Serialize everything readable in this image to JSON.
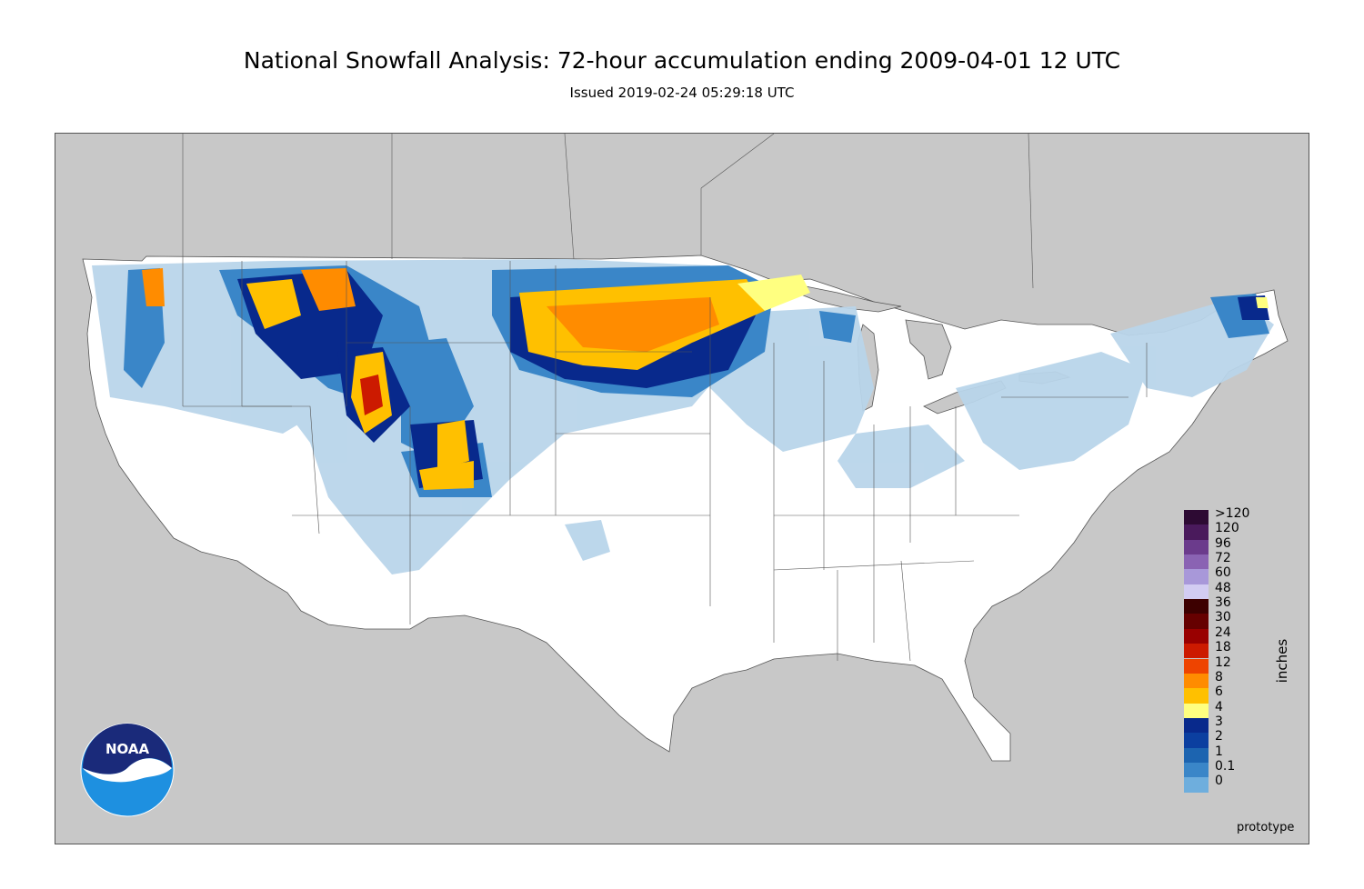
{
  "header": {
    "title": "National Snowfall Analysis: 72-hour accumulation ending 2009-04-01 12 UTC",
    "subtitle": "Issued 2019-02-24 05:29:18 UTC"
  },
  "legend": {
    "units": "inches",
    "entries": [
      {
        "label": ">120",
        "color": "#2d0a33"
      },
      {
        "label": "120",
        "color": "#4a1a5c"
      },
      {
        "label": "96",
        "color": "#6b3b8c"
      },
      {
        "label": "72",
        "color": "#8a63b3"
      },
      {
        "label": "60",
        "color": "#a898d9"
      },
      {
        "label": "48",
        "color": "#d2ccf2"
      },
      {
        "label": "36",
        "color": "#3d0000"
      },
      {
        "label": "30",
        "color": "#660000"
      },
      {
        "label": "24",
        "color": "#990000"
      },
      {
        "label": "18",
        "color": "#cc1a00"
      },
      {
        "label": "12",
        "color": "#ee4400"
      },
      {
        "label": "8",
        "color": "#ff8c00"
      },
      {
        "label": "6",
        "color": "#ffc000"
      },
      {
        "label": "4",
        "color": "#ffff80"
      },
      {
        "label": "3",
        "color": "#08298c"
      },
      {
        "label": "2",
        "color": "#0b3fa0"
      },
      {
        "label": "1",
        "color": "#1c64b0"
      },
      {
        "label": "0.1",
        "color": "#3a86c8"
      },
      {
        "label": "0",
        "color": "#6eaedd"
      }
    ],
    "extra_colors": [
      "#b9d5ea",
      "#dde9f4",
      "#ffffff"
    ]
  },
  "map": {
    "land_color": "#c8c8c8",
    "water_color": "#c8c8c8",
    "conus_color": "#ffffff",
    "border_color": "#555555"
  },
  "logo": {
    "text": "NOAA",
    "color_dark": "#1a2a7a",
    "color_light": "#1e90e0"
  },
  "footer": {
    "note": "prototype"
  }
}
